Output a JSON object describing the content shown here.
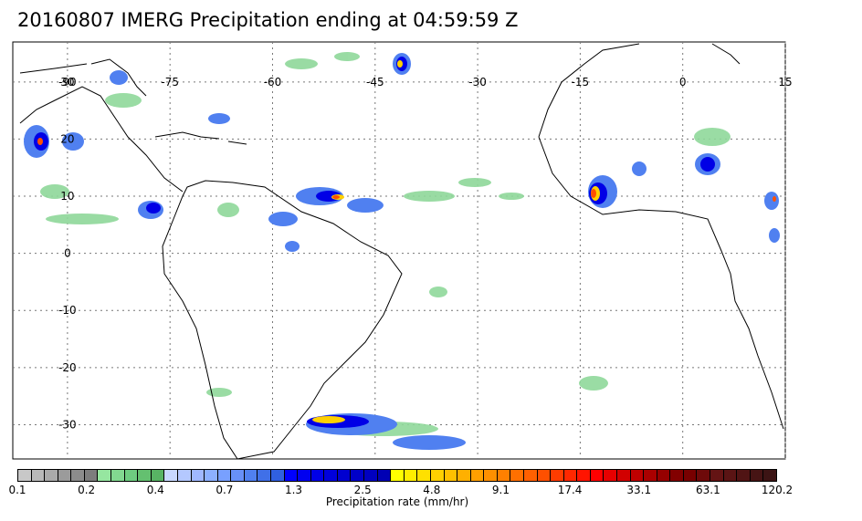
{
  "title": "20160807 IMERG Precipitation ending at 04:59:59 Z",
  "map": {
    "lon_range": [
      -98,
      15
    ],
    "lat_range": [
      -36,
      37
    ],
    "lon_ticks": [
      "-90",
      "-75",
      "-60",
      "-45",
      "-30",
      "-15",
      "0",
      "15"
    ],
    "lat_ticks": [
      "30",
      "20",
      "10",
      "0",
      "-10",
      "-20",
      "-30"
    ],
    "grid": "dotted",
    "coastline_color": "#000000"
  },
  "colorbar": {
    "title": "Precipitation rate (mm/hr)",
    "colors": [
      "#c8c8c8",
      "#b9b9b9",
      "#aaaaaa",
      "#9b9b9b",
      "#8c8c8c",
      "#7d7d7d",
      "#96e6a0",
      "#82d890",
      "#6ecc80",
      "#64c070",
      "#58b464",
      "#c8d8ff",
      "#b4c8ff",
      "#a0b8ff",
      "#8cb0ff",
      "#78a0ff",
      "#6890f8",
      "#5080f0",
      "#4070e8",
      "#3060e0",
      "#0000ff",
      "#0000f0",
      "#0000e6",
      "#0000dc",
      "#0000d0",
      "#0000c8",
      "#0000c0",
      "#0000b4",
      "#ffff00",
      "#ffee00",
      "#ffe000",
      "#ffd000",
      "#ffc000",
      "#ffb000",
      "#ffa000",
      "#ff9000",
      "#ff8000",
      "#ff7000",
      "#ff6000",
      "#ff5000",
      "#ff3c00",
      "#ff2800",
      "#ff1400",
      "#ff0000",
      "#e60000",
      "#d20000",
      "#be0000",
      "#aa0000",
      "#960000",
      "#820000",
      "#780000",
      "#6e0a0a",
      "#641414",
      "#5a1414",
      "#501414",
      "#461414",
      "#3c1414"
    ],
    "labels": [
      "0.1",
      "0.2",
      "0.4",
      "0.7",
      "1.3",
      "2.5",
      "4.8",
      "9.1",
      "17.4",
      "33.1",
      "63.1",
      "120.2"
    ]
  }
}
